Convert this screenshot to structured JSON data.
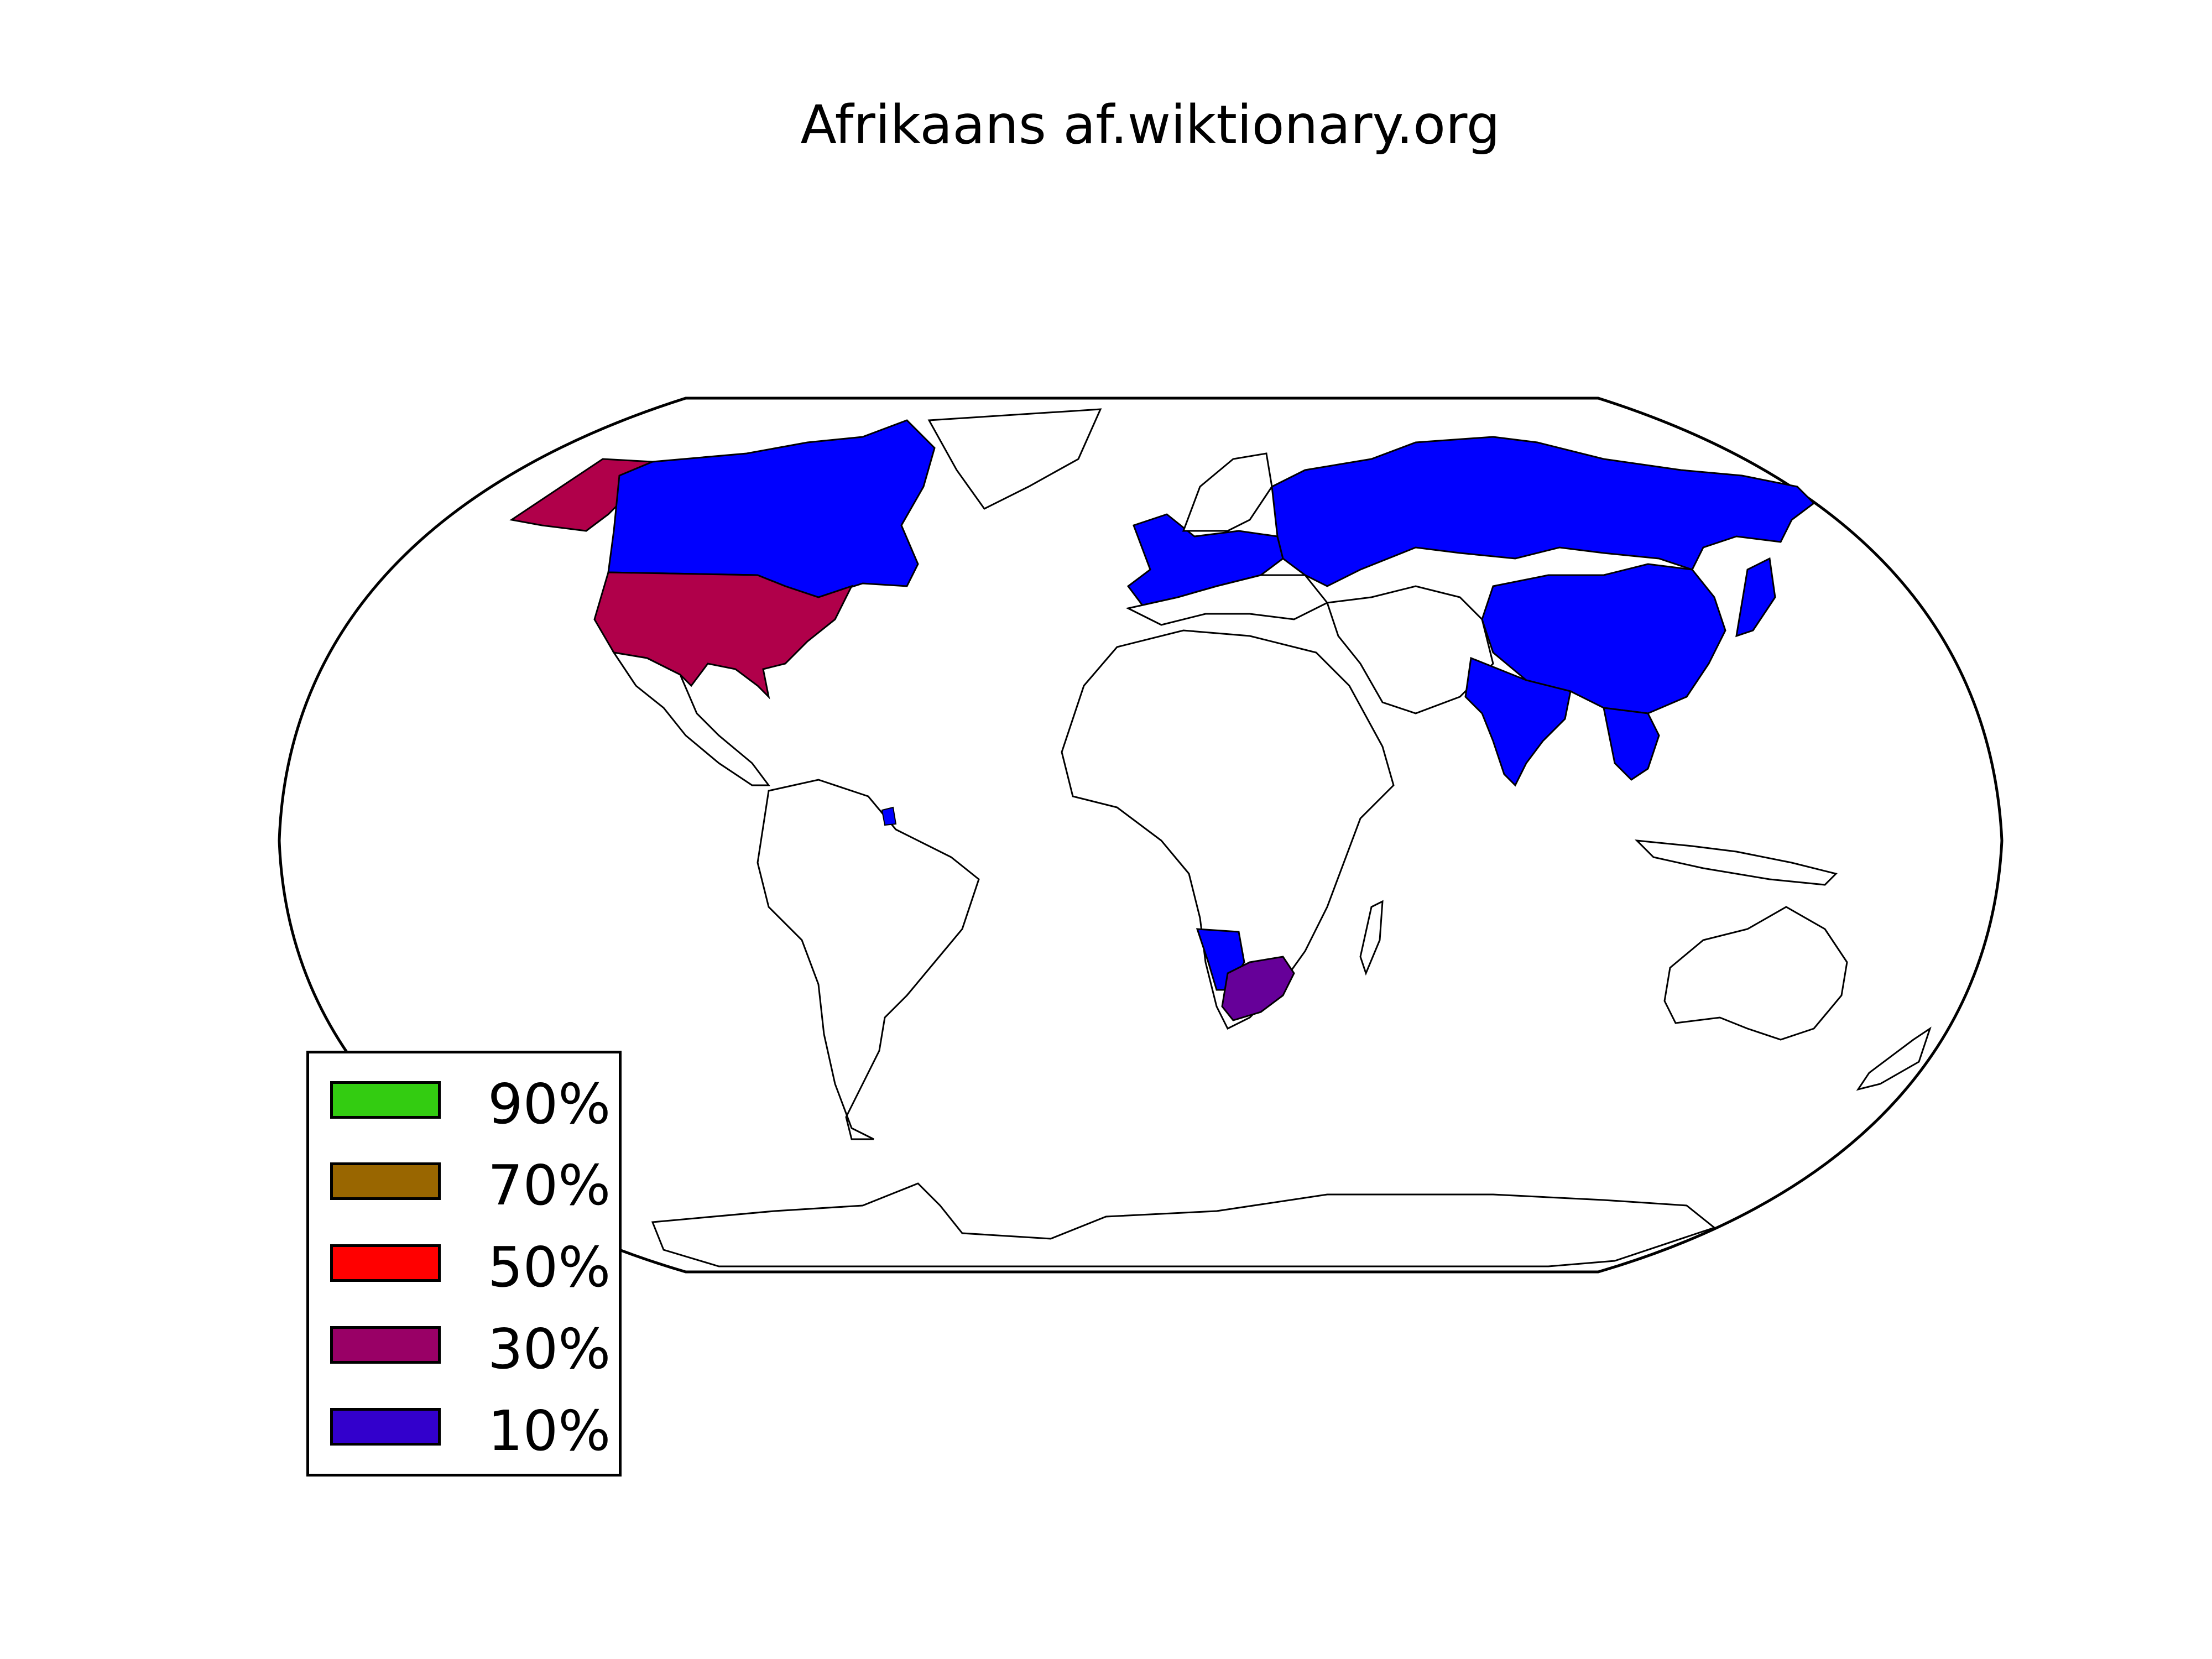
{
  "title": "Afrikaans af.wiktionary.org",
  "colors": {
    "ocean": "#ffffff",
    "land_default": "#ffffff",
    "border": "#000000",
    "level_10": "#0000ff",
    "level_30": "#b0004a",
    "south_africa": "#660099"
  },
  "highlighted_regions": [
    {
      "name": "Alaska / USA",
      "level": "30%"
    },
    {
      "name": "United States",
      "level": "30%"
    },
    {
      "name": "Canada",
      "level": "10%"
    },
    {
      "name": "Russia",
      "level": "10%"
    },
    {
      "name": "China",
      "level": "10%"
    },
    {
      "name": "India",
      "level": "10%"
    },
    {
      "name": "Japan",
      "level": "10%"
    },
    {
      "name": "Western Europe",
      "level": "10%"
    },
    {
      "name": "Namibia",
      "level": "10%"
    },
    {
      "name": "South Africa",
      "level": "30%"
    }
  ],
  "legend": {
    "items": [
      {
        "label": "90%",
        "color": "#33cc11"
      },
      {
        "label": "70%",
        "color": "#996600"
      },
      {
        "label": "50%",
        "color": "#ff0000"
      },
      {
        "label": "30%",
        "color": "#990066"
      },
      {
        "label": "10%",
        "color": "#3300cc"
      }
    ]
  }
}
